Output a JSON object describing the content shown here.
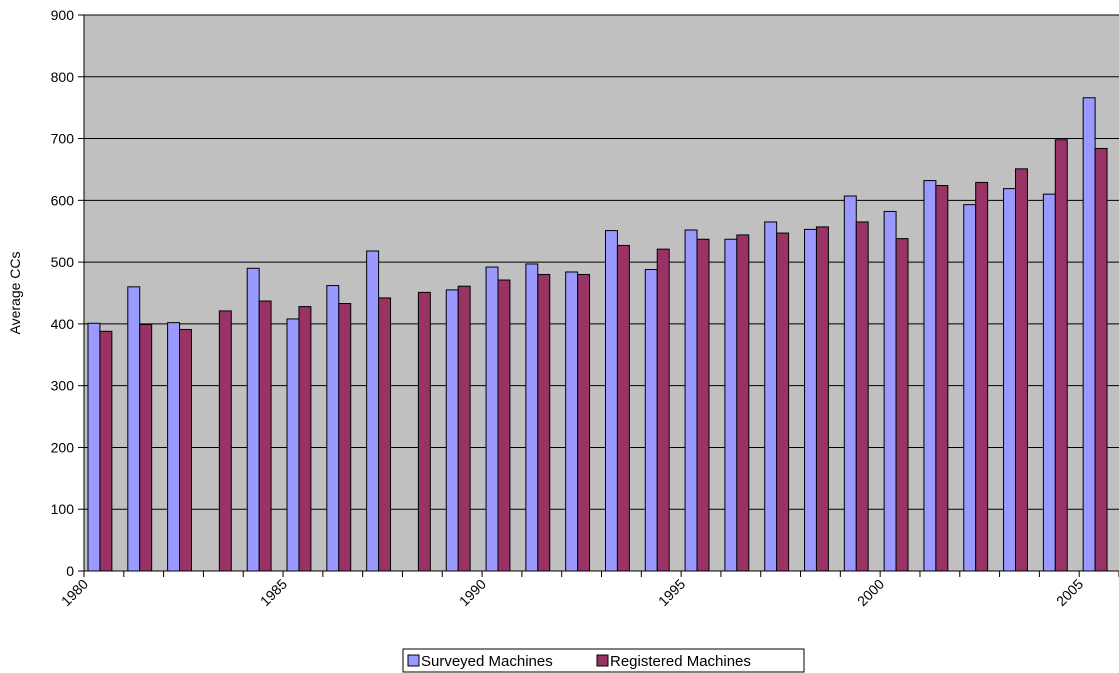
{
  "chart_data": {
    "type": "bar",
    "title": "",
    "xlabel": "",
    "ylabel": "Average CCs",
    "ylim": [
      0,
      900
    ],
    "yticks": [
      0,
      100,
      200,
      300,
      400,
      500,
      600,
      700,
      800,
      900
    ],
    "x_tick_labels": [
      "1980",
      "1985",
      "1990",
      "1995",
      "2000",
      "2005"
    ],
    "categories": [
      1980,
      1981,
      1982,
      1983,
      1984,
      1985,
      1986,
      1987,
      1988,
      1989,
      1990,
      1991,
      1992,
      1993,
      1994,
      1995,
      1996,
      1997,
      1998,
      1999,
      2000,
      2001,
      2002,
      2003,
      2004,
      2005
    ],
    "series": [
      {
        "name": "Surveyed Machines",
        "color": "#9999ff",
        "values": [
          401,
          460,
          402,
          null,
          490,
          408,
          462,
          518,
          null,
          455,
          492,
          497,
          484,
          551,
          488,
          552,
          537,
          565,
          553,
          607,
          582,
          632,
          593,
          619,
          610,
          766
        ]
      },
      {
        "name": "Registered Machines",
        "color": "#993366",
        "values": [
          388,
          399,
          391,
          421,
          437,
          428,
          433,
          442,
          451,
          461,
          471,
          480,
          480,
          527,
          521,
          537,
          544,
          547,
          557,
          565,
          538,
          624,
          629,
          651,
          698,
          684
        ]
      }
    ],
    "grid": true,
    "plot_background": "#c0c0c0",
    "legend_position": "bottom-center"
  }
}
